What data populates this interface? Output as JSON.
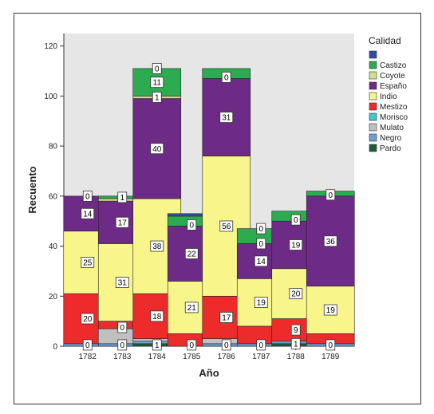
{
  "chart_data": {
    "type": "bar",
    "stacked": true,
    "xlabel": "Año",
    "ylabel": "Recuento",
    "ylim": [
      0,
      125
    ],
    "yticks": [
      0,
      20,
      40,
      60,
      80,
      100,
      120
    ],
    "categories": [
      "1782",
      "1783",
      "1784",
      "1785",
      "1786",
      "1787",
      "1788",
      "1789"
    ],
    "legend_title": "Calidad",
    "legend_position": "right",
    "series": [
      {
        "name": "Pardo",
        "color": "#1b5e38",
        "values": [
          0,
          0,
          1,
          0,
          0,
          0,
          1,
          0
        ]
      },
      {
        "name": "Negro",
        "color": "#6e9fd2",
        "values": [
          1,
          1,
          1,
          0,
          1,
          1,
          1,
          1
        ]
      },
      {
        "name": "Mulato",
        "color": "#c0c0c0",
        "values": [
          0,
          6,
          1,
          0,
          2,
          0,
          0,
          0
        ]
      },
      {
        "name": "Morisco",
        "color": "#3ec9cf",
        "values": [
          0,
          0,
          0,
          0,
          0,
          0,
          0,
          0
        ]
      },
      {
        "name": "Mestizo",
        "color": "#ee2b2b",
        "values": [
          20,
          3,
          18,
          5,
          17,
          7,
          9,
          4
        ]
      },
      {
        "name": "Indio",
        "color": "#f8f58a",
        "values": [
          25,
          31,
          38,
          21,
          56,
          19,
          20,
          19
        ]
      },
      {
        "name": "Españo",
        "color": "#6e2a87",
        "values": [
          14,
          17,
          40,
          22,
          31,
          14,
          19,
          36
        ]
      },
      {
        "name": "Coyote",
        "color": "#cfe08f",
        "values": [
          0,
          1,
          1,
          0,
          0,
          0,
          0,
          0
        ]
      },
      {
        "name": "Castizo",
        "color": "#2dab50",
        "values": [
          0,
          1,
          11,
          4,
          4,
          6,
          4,
          2
        ]
      },
      {
        "name": "",
        "color": "#2f4ea5",
        "values": [
          0,
          0,
          0,
          1,
          0,
          0,
          0,
          0
        ]
      }
    ],
    "data_labels": [
      {
        "category": "1782",
        "value": "0",
        "at": 0.5
      },
      {
        "category": "1782",
        "value": "20",
        "at": 11
      },
      {
        "category": "1782",
        "value": "25",
        "at": 33.5
      },
      {
        "category": "1782",
        "value": "14",
        "at": 53
      },
      {
        "category": "1782",
        "value": "0",
        "at": 60
      },
      {
        "category": "1783",
        "value": "0",
        "at": 0.5
      },
      {
        "category": "1783",
        "value": "0",
        "at": 7.5
      },
      {
        "category": "1783",
        "value": "31",
        "at": 25.5
      },
      {
        "category": "1783",
        "value": "17",
        "at": 49.5
      },
      {
        "category": "1783",
        "value": "1",
        "at": 59.5
      },
      {
        "category": "1784",
        "value": "1",
        "at": 0.5
      },
      {
        "category": "1784",
        "value": "18",
        "at": 12
      },
      {
        "category": "1784",
        "value": "38",
        "at": 40
      },
      {
        "category": "1784",
        "value": "40",
        "at": 79
      },
      {
        "category": "1784",
        "value": "1",
        "at": 99.5
      },
      {
        "category": "1784",
        "value": "11",
        "at": 105.5
      },
      {
        "category": "1784",
        "value": "0",
        "at": 111
      },
      {
        "category": "1785",
        "value": "0",
        "at": 0.5
      },
      {
        "category": "1785",
        "value": "21",
        "at": 15.5
      },
      {
        "category": "1785",
        "value": "22",
        "at": 37
      },
      {
        "category": "1785",
        "value": "0",
        "at": 48.5
      },
      {
        "category": "1786",
        "value": "0",
        "at": 0.5
      },
      {
        "category": "1786",
        "value": "17",
        "at": 11.5
      },
      {
        "category": "1786",
        "value": "56",
        "at": 48
      },
      {
        "category": "1786",
        "value": "31",
        "at": 91.5
      },
      {
        "category": "1786",
        "value": "0",
        "at": 107.5
      },
      {
        "category": "1787",
        "value": "0",
        "at": 0.5
      },
      {
        "category": "1787",
        "value": "19",
        "at": 17.5
      },
      {
        "category": "1787",
        "value": "14",
        "at": 34
      },
      {
        "category": "1787",
        "value": "0",
        "at": 41
      },
      {
        "category": "1787",
        "value": "0",
        "at": 47
      },
      {
        "category": "1788",
        "value": "1",
        "at": 1
      },
      {
        "category": "1788",
        "value": "9",
        "at": 6.5
      },
      {
        "category": "1788",
        "value": "20",
        "at": 21
      },
      {
        "category": "1788",
        "value": "19",
        "at": 40.5
      },
      {
        "category": "1788",
        "value": "0",
        "at": 50.5
      },
      {
        "category": "1789",
        "value": "0",
        "at": 0.5
      },
      {
        "category": "1789",
        "value": "19",
        "at": 14.5
      },
      {
        "category": "1789",
        "value": "36",
        "at": 42
      },
      {
        "category": "1789",
        "value": "0",
        "at": 60.5
      }
    ],
    "legend": [
      {
        "name": "",
        "color": "#2f4ea5"
      },
      {
        "name": "Castizo",
        "color": "#2dab50"
      },
      {
        "name": "Coyote",
        "color": "#cfe08f"
      },
      {
        "name": "Españo",
        "color": "#6e2a87"
      },
      {
        "name": "Indio",
        "color": "#f8f58a"
      },
      {
        "name": "Mestizo",
        "color": "#ee2b2b"
      },
      {
        "name": "Morisco",
        "color": "#3ec9cf"
      },
      {
        "name": "Mulato",
        "color": "#c0c0c0"
      },
      {
        "name": "Negro",
        "color": "#6e9fd2"
      },
      {
        "name": "Pardo",
        "color": "#1b5e38"
      }
    ],
    "plot_background": "#e6e6e6",
    "grid": false
  }
}
